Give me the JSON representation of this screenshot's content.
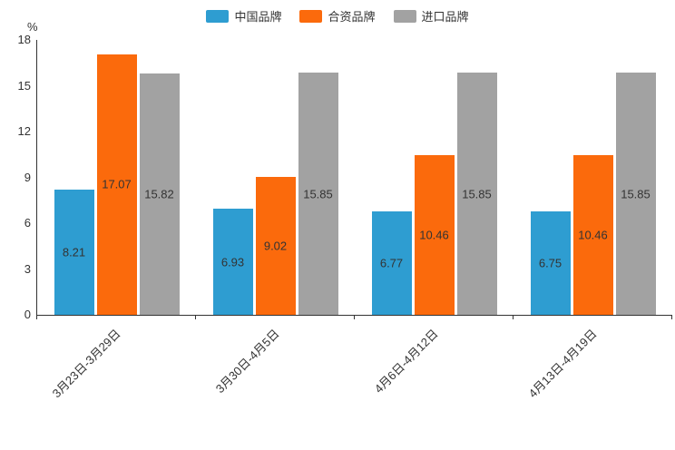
{
  "unit_label": "%",
  "chart_data": {
    "type": "bar",
    "title": "",
    "categories": [
      "3月23日-3月29日",
      "3月30日-4月5日",
      "4月6日-4月12日",
      "4月13日-4月19日"
    ],
    "series": [
      {
        "name": "中国品牌",
        "color": "#2E9DD1",
        "values": [
          8.21,
          6.93,
          6.77,
          6.75
        ]
      },
      {
        "name": "合资品牌",
        "color": "#FB6A0C",
        "values": [
          17.07,
          9.02,
          10.46,
          10.46
        ]
      },
      {
        "name": "进口品牌",
        "color": "#A2A2A2",
        "values": [
          15.82,
          15.85,
          15.85,
          15.85
        ]
      }
    ],
    "ylabel": "%",
    "xlabel": "",
    "ylim": [
      0,
      18
    ],
    "yticks": [
      0,
      3,
      6,
      9,
      12,
      15,
      18
    ],
    "legend_position": "top",
    "grid": false,
    "value_labels": "inside"
  }
}
